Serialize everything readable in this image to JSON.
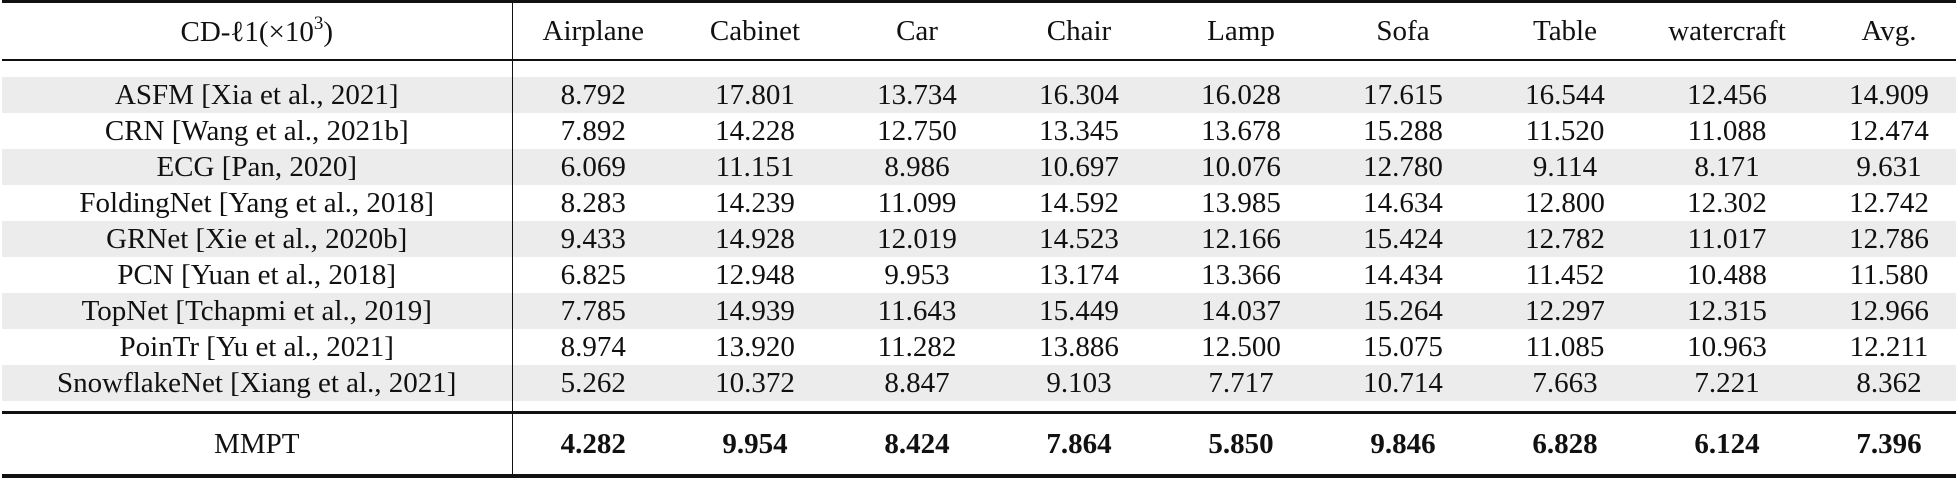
{
  "table": {
    "header": {
      "metric_prefix": "CD-ℓ1(×10",
      "metric_exp": "3",
      "metric_suffix": ")",
      "columns": [
        "Airplane",
        "Cabinet",
        "Car",
        "Chair",
        "Lamp",
        "Sofa",
        "Table",
        "watercraft",
        "Avg."
      ]
    },
    "rows": [
      {
        "method": "ASFM [Xia et al., 2021]",
        "values": [
          "8.792",
          "17.801",
          "13.734",
          "16.304",
          "16.028",
          "17.615",
          "16.544",
          "12.456",
          "14.909"
        ]
      },
      {
        "method": "CRN [Wang et al., 2021b]",
        "values": [
          "7.892",
          "14.228",
          "12.750",
          "13.345",
          "13.678",
          "15.288",
          "11.520",
          "11.088",
          "12.474"
        ]
      },
      {
        "method": "ECG [Pan, 2020]",
        "values": [
          "6.069",
          "11.151",
          "8.986",
          "10.697",
          "10.076",
          "12.780",
          "9.114",
          "8.171",
          "9.631"
        ]
      },
      {
        "method": "FoldingNet [Yang et al., 2018]",
        "values": [
          "8.283",
          "14.239",
          "11.099",
          "14.592",
          "13.985",
          "14.634",
          "12.800",
          "12.302",
          "12.742"
        ]
      },
      {
        "method": "GRNet [Xie et al., 2020b]",
        "values": [
          "9.433",
          "14.928",
          "12.019",
          "14.523",
          "12.166",
          "15.424",
          "12.782",
          "11.017",
          "12.786"
        ]
      },
      {
        "method": "PCN [Yuan et al., 2018]",
        "values": [
          "6.825",
          "12.948",
          "9.953",
          "13.174",
          "13.366",
          "14.434",
          "11.452",
          "10.488",
          "11.580"
        ]
      },
      {
        "method": "TopNet [Tchapmi et al., 2019]",
        "values": [
          "7.785",
          "14.939",
          "11.643",
          "15.449",
          "14.037",
          "15.264",
          "12.297",
          "12.315",
          "12.966"
        ]
      },
      {
        "method": "PoinTr [Yu et al., 2021]",
        "values": [
          "8.974",
          "13.920",
          "11.282",
          "13.886",
          "12.500",
          "15.075",
          "11.085",
          "10.963",
          "12.211"
        ]
      },
      {
        "method": "SnowflakeNet [Xiang et al., 2021]",
        "values": [
          "5.262",
          "10.372",
          "8.847",
          "9.103",
          "7.717",
          "10.714",
          "7.663",
          "7.221",
          "8.362"
        ]
      }
    ],
    "proposed": {
      "method": "MMPT",
      "values": [
        "4.282",
        "9.954",
        "8.424",
        "7.864",
        "5.850",
        "9.846",
        "6.828",
        "6.124",
        "7.396"
      ]
    },
    "colors": {
      "row_shade": "#ececec",
      "rule": "#111111"
    }
  }
}
